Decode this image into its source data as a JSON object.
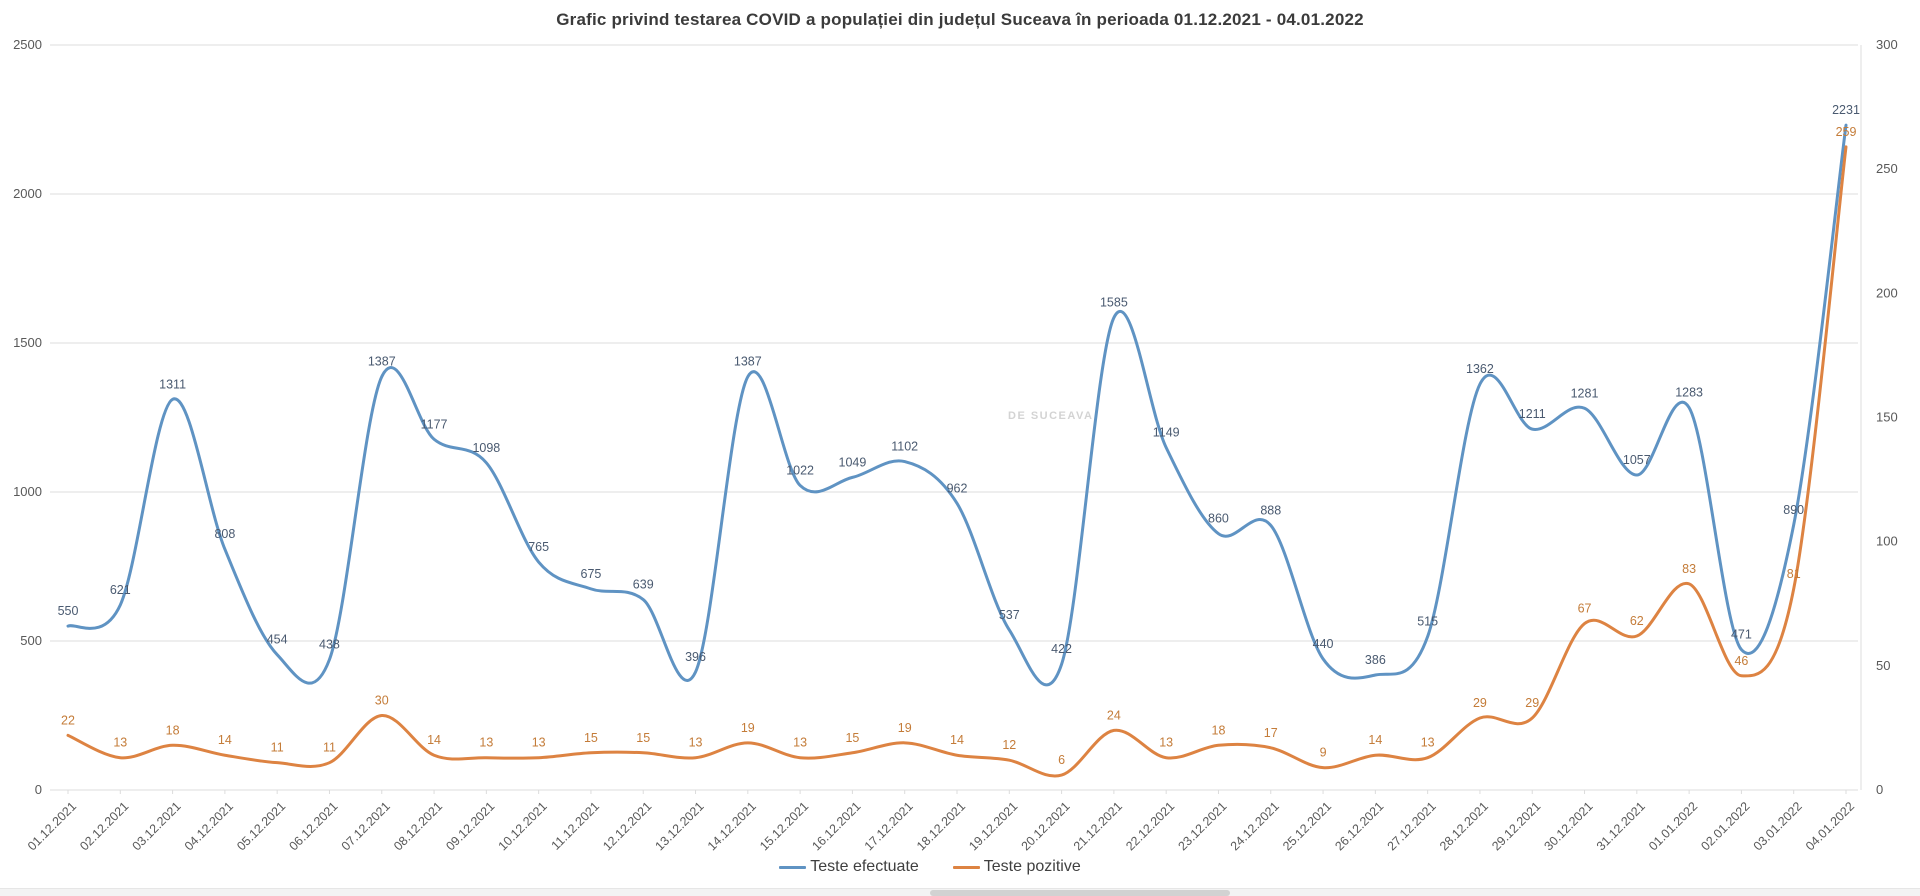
{
  "title": "Grafic privind testarea COVID a populației din județul Suceava în perioada 01.12.2021 - 04.01.2022",
  "watermark": "DE SUCEAVA",
  "legend": {
    "series1": "Teste efectuate",
    "series2": "Teste pozitive"
  },
  "chart_data": {
    "type": "line",
    "title": "Grafic privind testarea COVID a populației din județul Suceava în perioada 01.12.2021 - 04.01.2022",
    "smoothed": true,
    "grid": true,
    "legend_position": "bottom",
    "categories": [
      "01.12.2021",
      "02.12.2021",
      "03.12.2021",
      "04.12.2021",
      "05.12.2021",
      "06.12.2021",
      "07.12.2021",
      "08.12.2021",
      "09.12.2021",
      "10.12.2021",
      "11.12.2021",
      "12.12.2021",
      "13.12.2021",
      "14.12.2021",
      "15.12.2021",
      "16.12.2021",
      "17.12.2021",
      "18.12.2021",
      "19.12.2021",
      "20.12.2021",
      "21.12.2021",
      "22.12.2021",
      "23.12.2021",
      "24.12.2021",
      "25.12.2021",
      "26.12.2021",
      "27.12.2021",
      "28.12.2021",
      "29.12.2021",
      "30.12.2021",
      "31.12.2021",
      "01.01.2022",
      "02.01.2022",
      "03.01.2022",
      "04.01.2022"
    ],
    "series": [
      {
        "name": "Teste efectuate",
        "axis": "left",
        "color": "#5f93c3",
        "label_color": "#4a5a70",
        "values": [
          550,
          621,
          1311,
          808,
          454,
          438,
          1387,
          1177,
          1098,
          765,
          675,
          639,
          396,
          1387,
          1022,
          1049,
          1102,
          962,
          537,
          422,
          1585,
          1149,
          860,
          888,
          440,
          386,
          515,
          1362,
          1211,
          1281,
          1057,
          1283,
          471,
          890,
          2231
        ]
      },
      {
        "name": "Teste pozitive",
        "axis": "right",
        "color": "#dd8342",
        "label_color": "#c47c39",
        "values": [
          22,
          13,
          18,
          14,
          11,
          11,
          30,
          14,
          13,
          13,
          15,
          15,
          13,
          19,
          13,
          15,
          19,
          14,
          12,
          6,
          24,
          13,
          18,
          17,
          9,
          14,
          13,
          29,
          29,
          67,
          62,
          83,
          46,
          81,
          259
        ]
      }
    ],
    "left_axis": {
      "min": 0,
      "max": 2500,
      "ticks": [
        0,
        500,
        1000,
        1500,
        2000,
        2500
      ]
    },
    "right_axis": {
      "min": 0,
      "max": 300,
      "ticks": [
        0,
        50,
        100,
        150,
        200,
        250,
        300
      ]
    },
    "colors": {
      "gridline": "#dcdcdc",
      "axis_text": "#595959",
      "title_text": "#3b3b3b"
    }
  }
}
